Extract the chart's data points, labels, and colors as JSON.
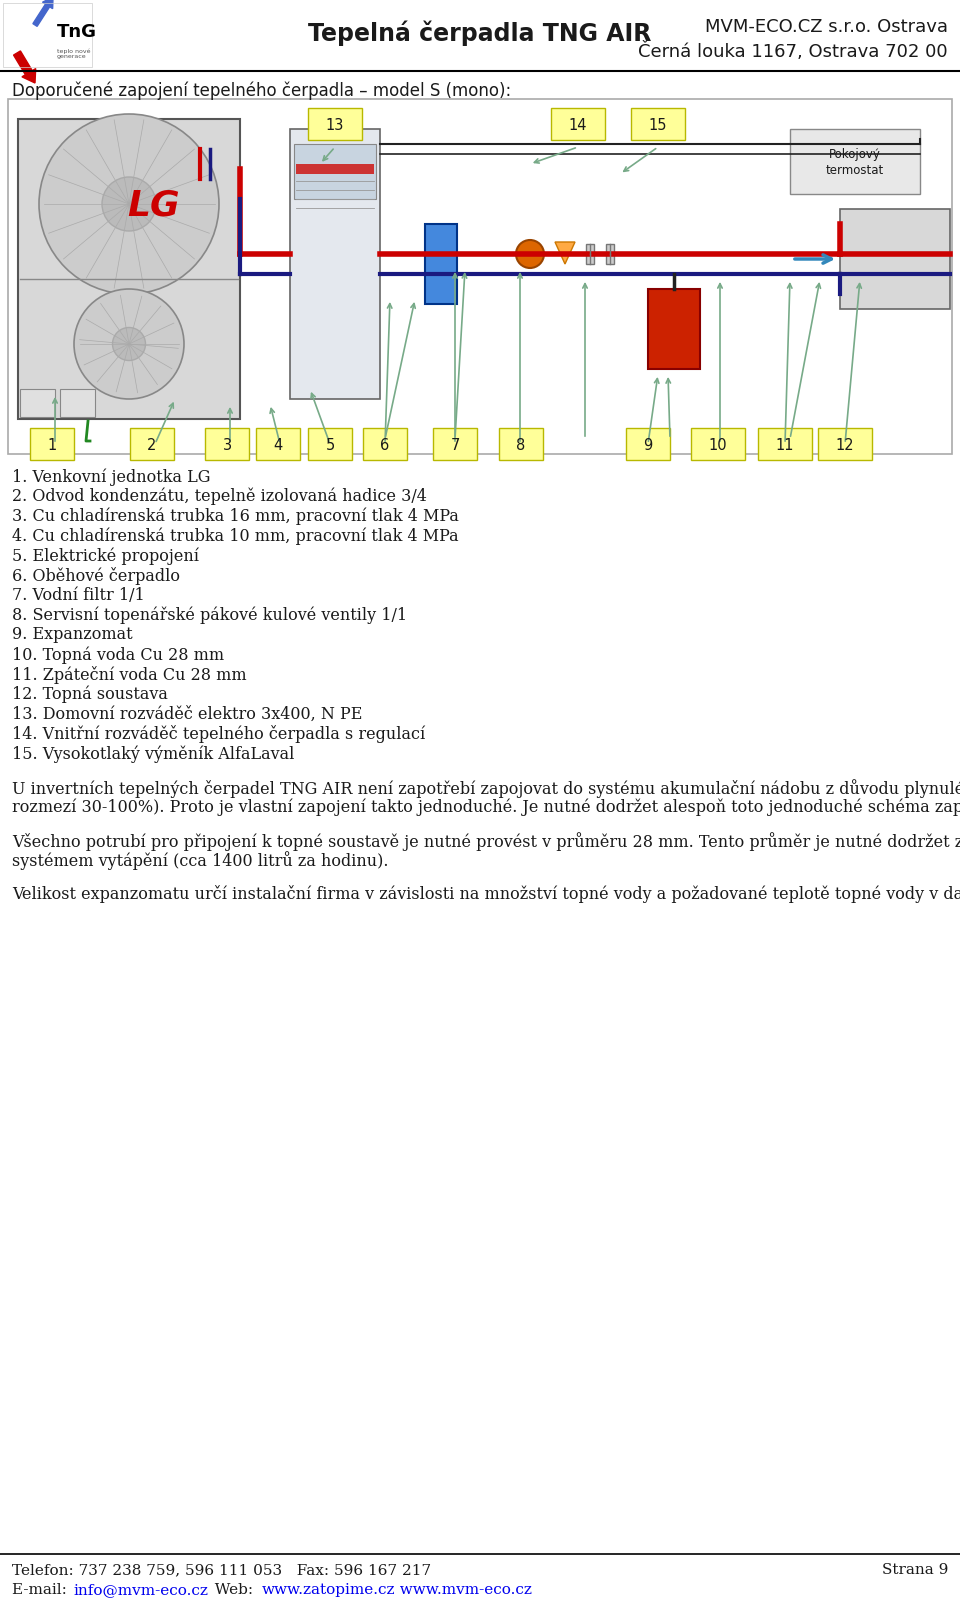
{
  "bg_color": "#ffffff",
  "text_color": "#1a1a1a",
  "link_color": "#0000ee",
  "header_center": "Tepelná čerpadla TNG AIR",
  "header_right1": "MVM-ECO.CZ s.r.o. Ostrava",
  "header_right2": "Černá louka 1167, Ostrava 702 00",
  "page_title": "Doporučené zapojení tepelného čerpadla – model S (mono):",
  "numbered_list": [
    "1. Venkovní jednotka LG",
    "2. Odvod kondenzátu, tepelně izolovaná hadice 3/4",
    "3. Cu chladírenská trubka 16 mm, pracovní tlak 4 MPa",
    "4. Cu chladírenská trubka 10 mm, pracovní tlak 4 MPa",
    "5. Elektrické propojení",
    "6. Oběhové čerpadlo",
    "7. Vodní filtr 1/1",
    "8. Servisní topenářské pákové kulové ventily 1/1",
    "9. Expanzomat",
    "10. Topná voda Cu 28 mm",
    "11. Zpáteční voda Cu 28 mm",
    "12. Topná soustava",
    "13. Domovní rozváděč elektro 3x400, N PE",
    "14. Vnitřní rozváděč tepelného čerpadla s regulací",
    "15. Vysokotlaký výměník AlfaLaval"
  ],
  "para1_normal1": "U invertních tepelných čerpadel ",
  "para1_bold": "TNG AIR",
  "para1_normal2": " není zapotřebí zapojovat do systému akumulační nádobu z důvodu plynulé regulace topného výkonu tepelného čerpadla (v rozmezí 30-100%). Proto je vlastní zapojení takto jednoduché. Je nutné dodržet alespoň toto jednoduché schéma zapojení.",
  "para2_normal1": "Všechno potrubí pro připojení k topné soustavě je ",
  "para2_bold": "nutné provést v průměru 28 mm",
  "para2_normal2": ". Tento průměr je nutné dodržet z důvodů nároku na velký průtok topné vody systémem vytápění (cca 1400 litrů za hodinu).",
  "para3": "Velikost expanzomatu určí instalační firma v závislosti na množství topné vody a požadované teplotě topné vody v daném topném systému.",
  "footer_phone": "Telefon: 737 238 759, 596 111 053   Fax: 596 167 217",
  "footer_page": "Strana 9",
  "footer_email_pre": "E-mail: ",
  "footer_email": "info@mvm-eco.cz",
  "footer_web_pre": "  Web:  ",
  "footer_web1": "www.zatopime.cz",
  "footer_web2": "  www.mvm-eco.cz",
  "yellow_fill": "#ffff99",
  "yellow_edge": "#b8b800",
  "diag_border": "#aaaaaa",
  "diag_bg": "#ffffff"
}
